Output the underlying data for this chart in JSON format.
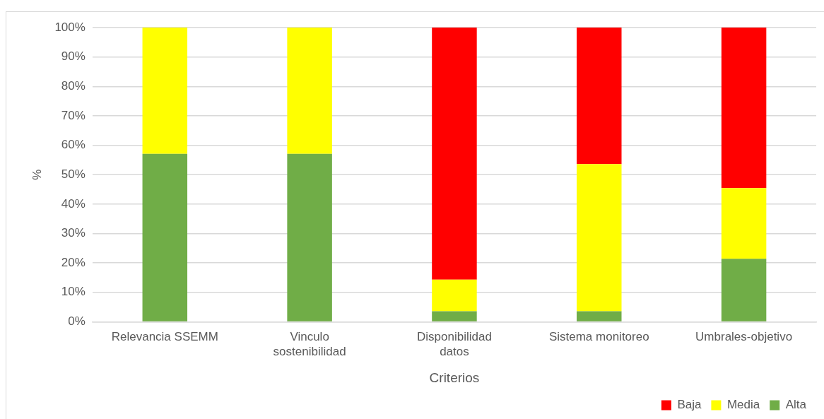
{
  "chart_data": {
    "type": "bar",
    "stacked": true,
    "xlabel": "Criterios",
    "ylabel": "%",
    "categories": [
      "Relevancia SSEMM",
      "Vinculo sostenibilidad",
      "Disponibilidad datos",
      "Sistema monitoreo",
      "Umbrales-objetivo"
    ],
    "series": [
      {
        "name": "Alta",
        "color": "#70ad47",
        "values": [
          57.1,
          57.1,
          3.6,
          3.6,
          21.4
        ]
      },
      {
        "name": "Media",
        "color": "#ffff00",
        "values": [
          42.9,
          42.9,
          10.7,
          50,
          24
        ]
      },
      {
        "name": "Baja",
        "color": "#ff0000",
        "values": [
          0,
          0,
          85.7,
          46.4,
          54.6
        ]
      }
    ],
    "ylim": [
      0,
      100
    ],
    "yticks": [
      {
        "value": 0,
        "label": "0%"
      },
      {
        "value": 10,
        "label": "10%"
      },
      {
        "value": 20,
        "label": "20%"
      },
      {
        "value": 30,
        "label": "30%"
      },
      {
        "value": 40,
        "label": "40%"
      },
      {
        "value": 50,
        "label": "50%"
      },
      {
        "value": 60,
        "label": "60%"
      },
      {
        "value": 70,
        "label": "70%"
      },
      {
        "value": 80,
        "label": "80%"
      },
      {
        "value": 90,
        "label": "90%"
      },
      {
        "value": 100,
        "label": "100%"
      }
    ],
    "grid": "y",
    "legend": "bottom right"
  }
}
